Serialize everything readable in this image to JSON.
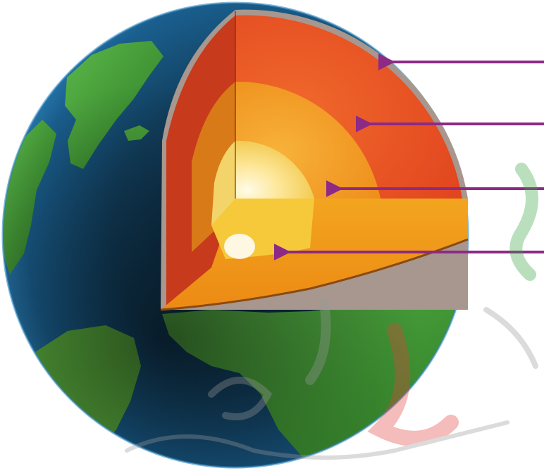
{
  "diagram": {
    "kind": "earth-interior-cutaway",
    "layers": [
      {
        "id": "crust",
        "color": "#a7978e"
      },
      {
        "id": "mantle",
        "color": "#ec4f22"
      },
      {
        "id": "outer-core",
        "color": "#f39a1f"
      },
      {
        "id": "inner-core",
        "color": "#fbe07a"
      }
    ],
    "arrow_color": "#8c2a86",
    "ocean_color": "#1a5f8f",
    "land_color": "#3f9a2d",
    "watermark": {
      "kind": "logo-watermark",
      "colors": [
        "#3aa241",
        "#e2423c",
        "#9a9a9a"
      ]
    }
  }
}
